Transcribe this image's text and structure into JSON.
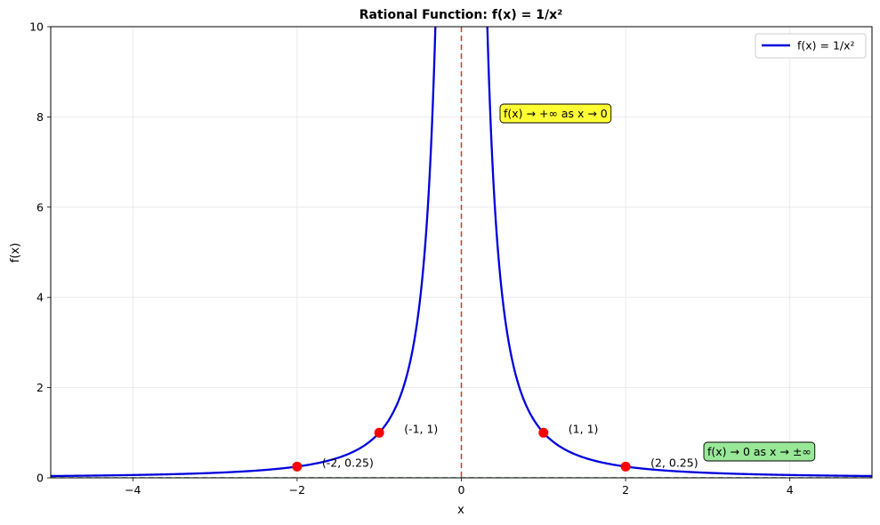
{
  "chart_data": {
    "type": "line",
    "title": "Rational Function: f(x) = 1/x²",
    "xlabel": "x",
    "ylabel": "f(x)",
    "xlim": [
      -5,
      5
    ],
    "ylim": [
      0,
      10
    ],
    "x_ticks": [
      -4,
      -2,
      0,
      2,
      4
    ],
    "x_tick_labels": [
      "−4",
      "−2",
      "0",
      "2",
      "4"
    ],
    "y_ticks": [
      0,
      2,
      4,
      6,
      8,
      10
    ],
    "y_tick_labels": [
      "0",
      "2",
      "4",
      "6",
      "8",
      "10"
    ],
    "grid": true,
    "legend": {
      "placement": "top-right",
      "entries": [
        "f(x) = 1/x²"
      ]
    },
    "series": [
      {
        "name": "f(x) = 1/x²",
        "function": "1/x^2",
        "x_range": [
          -5,
          5
        ],
        "color": "#0000dd"
      }
    ],
    "asymptotes": [
      {
        "kind": "vertical",
        "x": 0,
        "color": "#e03030",
        "style": "dashed"
      },
      {
        "kind": "horizontal",
        "y": 0,
        "color": "#2e8b2e",
        "style": "dashed"
      }
    ],
    "points": [
      {
        "x": -2,
        "y": 0.25,
        "label": "(-2, 0.25)"
      },
      {
        "x": -1,
        "y": 1,
        "label": "(-1, 1)"
      },
      {
        "x": 1,
        "y": 1,
        "label": "(1, 1)"
      },
      {
        "x": 2,
        "y": 0.25,
        "label": "(2, 0.25)"
      }
    ],
    "point_color": "#ff0000",
    "annotations": [
      {
        "text": "f(x) → +∞ as x → 0",
        "background": "#ffff33"
      },
      {
        "text": "f(x) → 0 as x → ±∞",
        "background": "#98e898"
      }
    ]
  }
}
